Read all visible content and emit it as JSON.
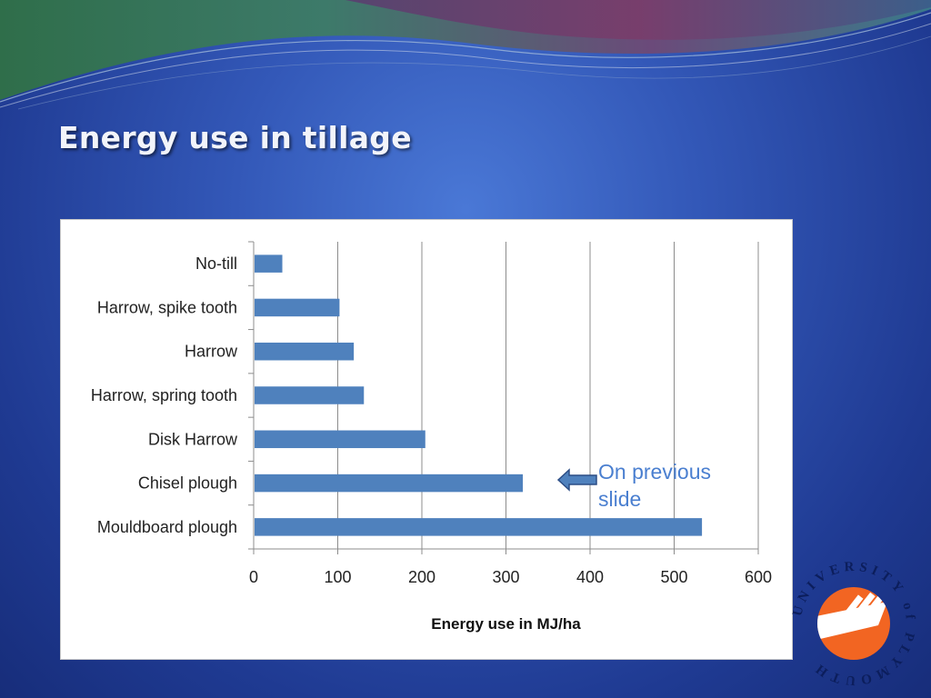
{
  "slide": {
    "title": "Energy use in tillage",
    "note": "On previous slide"
  },
  "logo": {
    "text": "UNIVERSITY of PLYMOUTH"
  },
  "colors": {
    "bar": "#4f81bd",
    "title_text": "#f2f4fa",
    "note_text": "#4a7fd0",
    "logo_orange": "#f26522",
    "logo_navy": "#0c1e5c"
  },
  "chart_data": {
    "type": "bar",
    "orientation": "horizontal",
    "categories": [
      "No-till",
      "Harrow, spike tooth",
      "Harrow",
      "Harrow, spring tooth",
      "Disk Harrow",
      "Chisel plough",
      "Mouldboard plough"
    ],
    "values": [
      33,
      101,
      118,
      130,
      203,
      319,
      532
    ],
    "xlabel": "Energy use in MJ/ha",
    "ylabel": "",
    "xlim": [
      0,
      600
    ],
    "xticks": [
      "0",
      "100",
      "200",
      "300",
      "400",
      "500",
      "600"
    ],
    "grid": true,
    "legend": "none"
  }
}
